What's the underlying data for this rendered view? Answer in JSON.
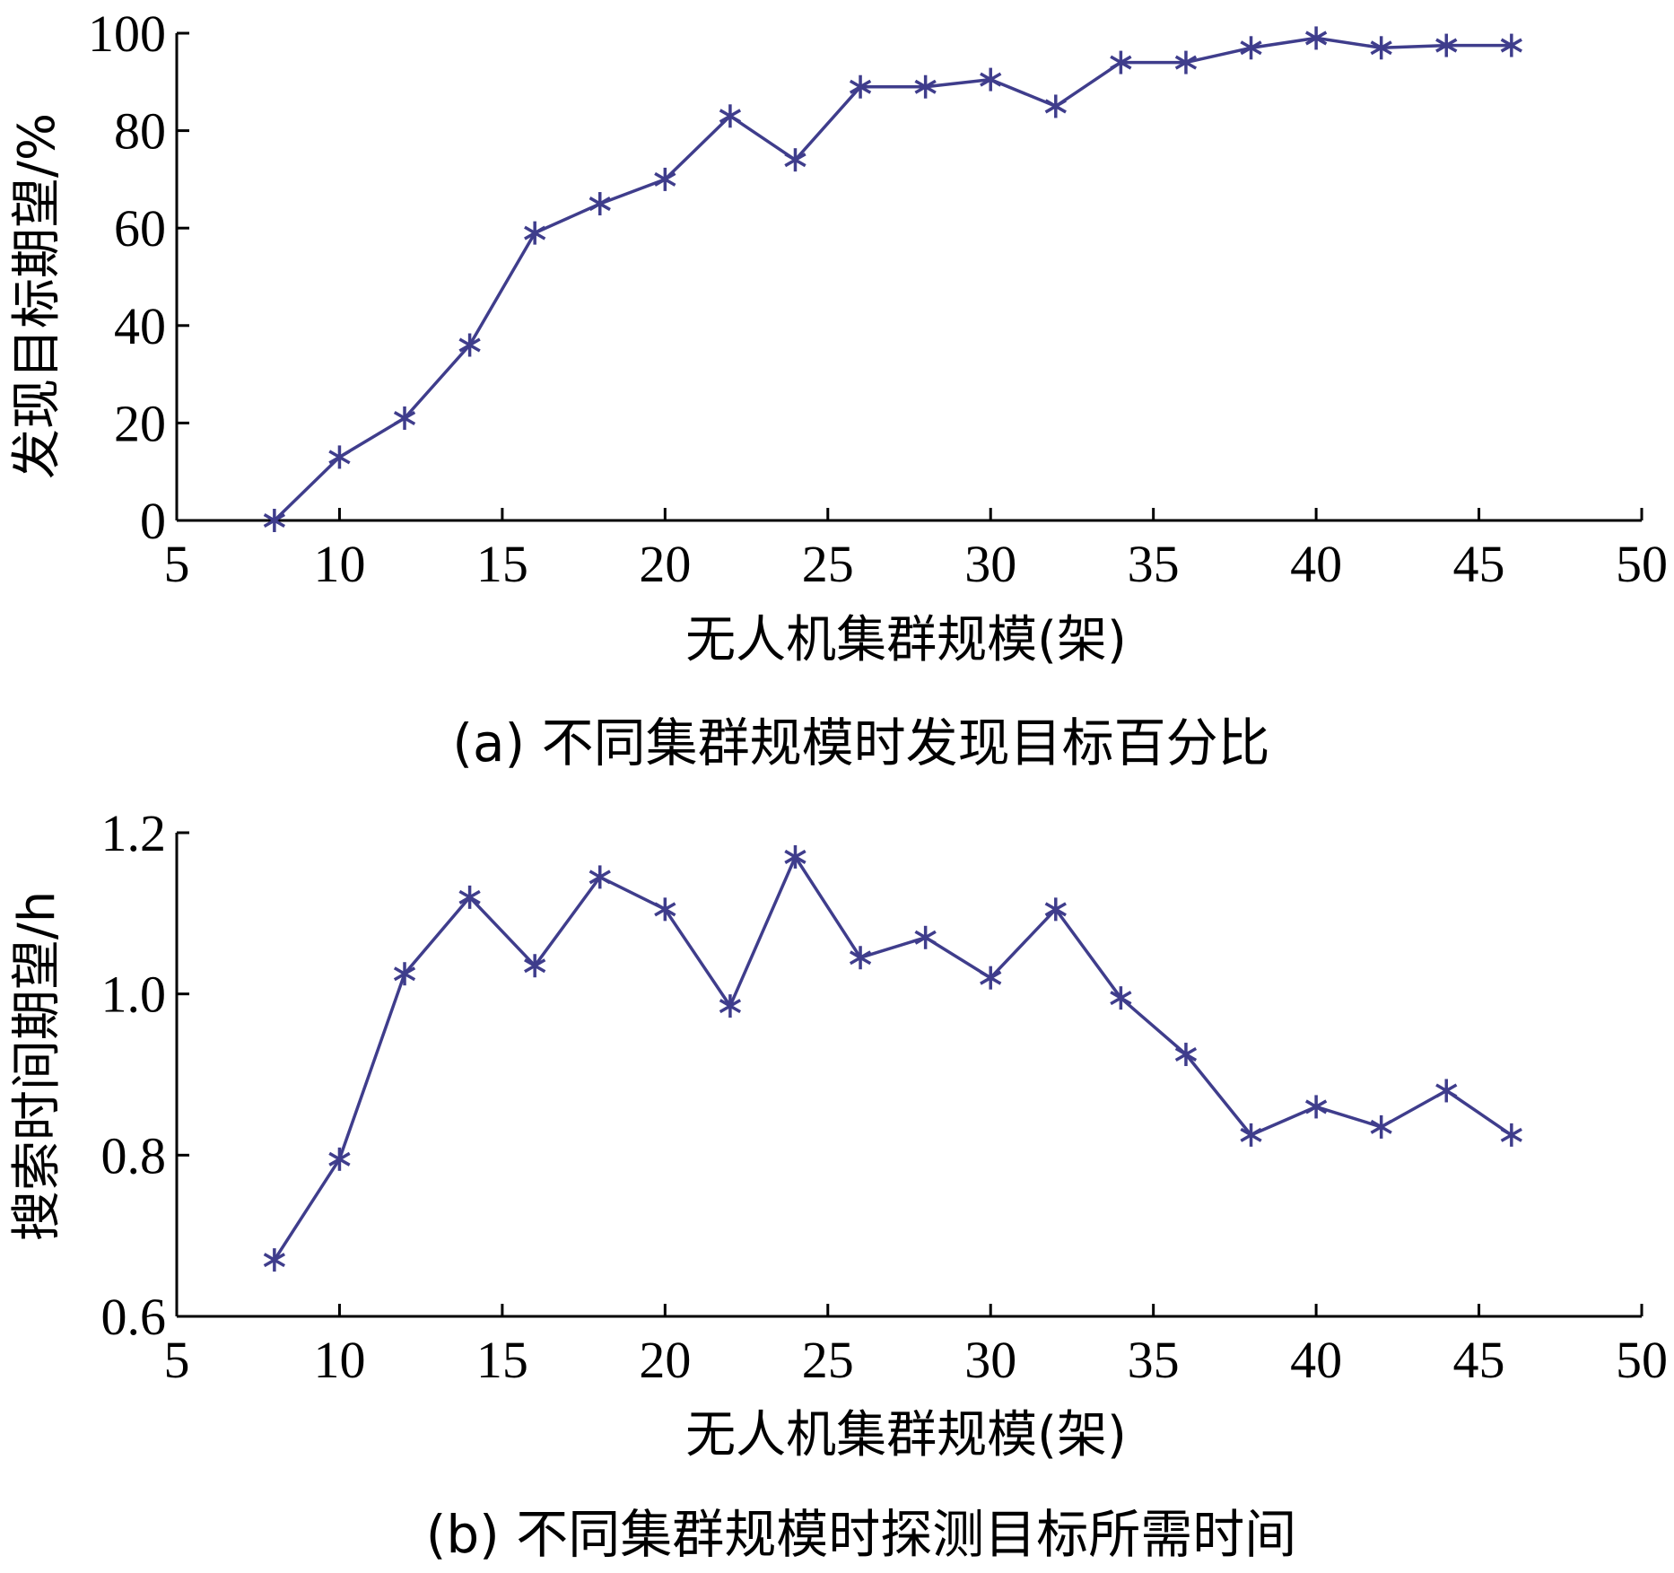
{
  "chart_data": [
    {
      "type": "line",
      "xlabel": "无人机集群规模(架)",
      "ylabel": "发现目标期望/%",
      "caption": "(a) 不同集群规模时发现目标百分比",
      "xlim": [
        5,
        50
      ],
      "ylim": [
        0,
        100
      ],
      "xticks": [
        5,
        10,
        15,
        20,
        25,
        30,
        35,
        40,
        45,
        50
      ],
      "yticks": [
        0,
        20,
        40,
        60,
        80,
        100
      ],
      "ytick_labels": [
        "0",
        "20",
        "40",
        "60",
        "80",
        "100"
      ],
      "marker": "asterisk",
      "color": "#3f3d8c",
      "grid": false,
      "x": [
        8,
        10,
        12,
        14,
        16,
        18,
        20,
        22,
        24,
        26,
        28,
        30,
        32,
        34,
        36,
        38,
        40,
        42,
        44,
        46
      ],
      "y": [
        0,
        13,
        21,
        36,
        59,
        65,
        70,
        83,
        74,
        89,
        89,
        90.5,
        85,
        94,
        94,
        97,
        99,
        97,
        97.5,
        97.5
      ]
    },
    {
      "type": "line",
      "xlabel": "无人机集群规模(架)",
      "ylabel": "搜索时间期望/h",
      "caption": "(b) 不同集群规模时探测目标所需时间",
      "xlim": [
        5,
        50
      ],
      "ylim": [
        0.6,
        1.2
      ],
      "xticks": [
        5,
        10,
        15,
        20,
        25,
        30,
        35,
        40,
        45,
        50
      ],
      "yticks": [
        0.6,
        0.8,
        1.0,
        1.2
      ],
      "ytick_labels": [
        "0.6",
        "0.8",
        "1.0",
        "1.2"
      ],
      "marker": "asterisk",
      "color": "#3f3d8c",
      "grid": false,
      "x": [
        8,
        10,
        12,
        14,
        16,
        18,
        20,
        22,
        24,
        26,
        28,
        30,
        32,
        34,
        36,
        38,
        40,
        42,
        44,
        46
      ],
      "y": [
        0.67,
        0.795,
        1.025,
        1.12,
        1.035,
        1.145,
        1.105,
        0.985,
        1.17,
        1.045,
        1.07,
        1.02,
        1.105,
        0.995,
        0.925,
        0.825,
        0.86,
        0.835,
        0.88,
        0.825
      ]
    }
  ]
}
